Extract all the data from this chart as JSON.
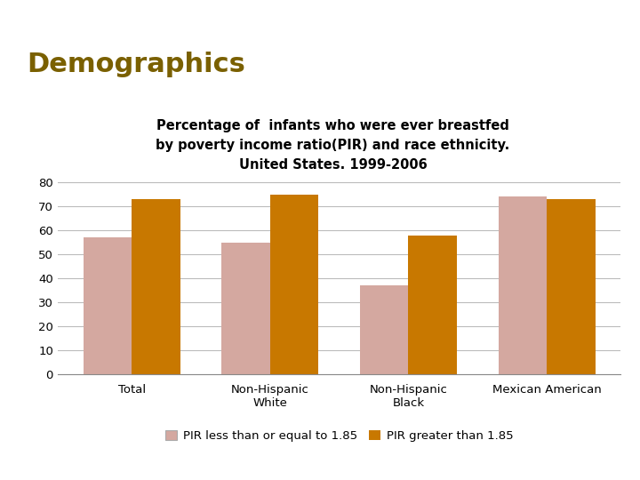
{
  "title_main": "Demographics",
  "subtitle_line1": "Percentage of  infants who were ever breastfed",
  "subtitle_line2": "by poverty income ratio(PIR) and race ethnicity.",
  "subtitle_line3": "United States. 1999-2006",
  "categories": [
    "Total",
    "Non-Hispanic\nWhite",
    "Non-Hispanic\nBlack",
    "Mexican American"
  ],
  "pir_low": [
    57,
    55,
    37,
    74
  ],
  "pir_high": [
    73,
    75,
    58,
    73
  ],
  "color_low": "#d4a8a0",
  "color_high": "#c87800",
  "legend_low": "PIR less than or equal to 1.85",
  "legend_high": "PIR greater than 1.85",
  "ylim": [
    0,
    80
  ],
  "yticks": [
    0,
    10,
    20,
    30,
    40,
    50,
    60,
    70,
    80
  ],
  "header_color": "#7a2a20",
  "title_color": "#7a6000",
  "background_color": "#ffffff",
  "grid_color": "#bbbbbb"
}
